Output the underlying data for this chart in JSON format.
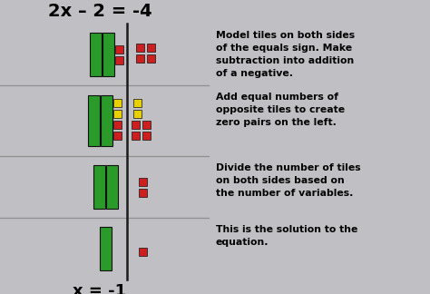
{
  "title": "2x – 2 = -4",
  "bottom_label": "x = -1",
  "bg_color": "#c0c0c4",
  "green_tall": "#2a9a2a",
  "red_small": "#cc2020",
  "yellow_small": "#e8d000",
  "divider_color": "#1a1a1a",
  "sep_color": "#909090",
  "title_fontsize": 14,
  "label_fontsize": 13,
  "desc_fontsize": 7.8,
  "descriptions": [
    "Model tiles on both sides\nof the equals sign. Make\nsubtraction into addition\nof a negative.",
    "Add equal numbers of\nopposite tiles to create\nzero pairs on the left.",
    "Divide the number of tiles\non both sides based on\nthe number of variables.",
    "This is the solution to the\nequation."
  ]
}
